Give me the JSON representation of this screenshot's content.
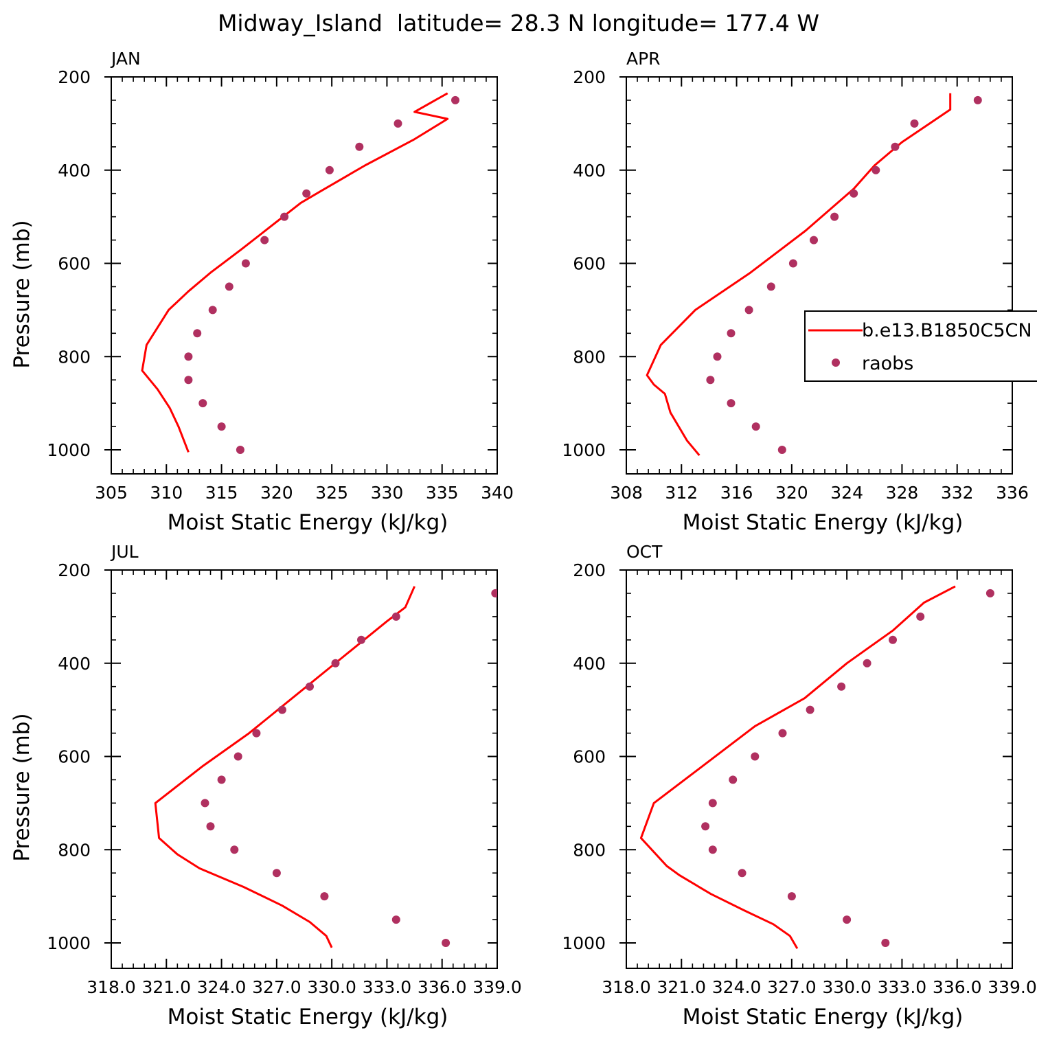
{
  "figure": {
    "title": "Midway_Island  latitude= 28.3 N longitude= 177.4 W"
  },
  "legend": {
    "entries": [
      {
        "label": "b.e13.B1850C5CN",
        "color": "#ff0000",
        "kind": "line"
      },
      {
        "label": "raobs",
        "color": "#b03060",
        "kind": "marker"
      }
    ]
  },
  "colors": {
    "model": "#ff0000",
    "obs": "#b03060"
  },
  "chart_data": [
    {
      "type": "line",
      "panel": "JAN",
      "xlabel": "Moist Static Energy (kJ/kg)",
      "ylabel": "Pressure (mb)",
      "xlim": [
        305,
        340
      ],
      "ylim": [
        1000,
        200
      ],
      "x_ticks": [
        "305",
        "310",
        "315",
        "320",
        "325",
        "330",
        "335",
        "340"
      ],
      "y_ticks": [
        "200",
        "400",
        "600",
        "800",
        "1000"
      ],
      "series": [
        {
          "name": "b.e13.B1850C5CN",
          "points": [
            [
              312.0,
              1005
            ],
            [
              311.1,
              950
            ],
            [
              310.3,
              910
            ],
            [
              309.2,
              870
            ],
            [
              307.8,
              830
            ],
            [
              308.2,
              775
            ],
            [
              310.2,
              700
            ],
            [
              312.0,
              660
            ],
            [
              314.0,
              620
            ],
            [
              316.8,
              570
            ],
            [
              319.5,
              520
            ],
            [
              322.2,
              470
            ],
            [
              324.0,
              445
            ],
            [
              328.0,
              390
            ],
            [
              332.4,
              335
            ],
            [
              335.5,
              290
            ],
            [
              332.5,
              275
            ],
            [
              335.5,
              235
            ]
          ]
        },
        {
          "name": "raobs",
          "points": [
            [
              316.7,
              1000
            ],
            [
              315.0,
              950
            ],
            [
              313.3,
              900
            ],
            [
              312.0,
              850
            ],
            [
              312.0,
              800
            ],
            [
              312.8,
              750
            ],
            [
              314.2,
              700
            ],
            [
              315.7,
              650
            ],
            [
              317.2,
              600
            ],
            [
              318.9,
              550
            ],
            [
              320.7,
              500
            ],
            [
              322.7,
              450
            ],
            [
              324.8,
              400
            ],
            [
              327.5,
              350
            ],
            [
              331.0,
              300
            ],
            [
              336.2,
              250
            ]
          ]
        }
      ]
    },
    {
      "type": "line",
      "panel": "APR",
      "xlabel": "Moist Static Energy (kJ/kg)",
      "ylabel": "",
      "xlim": [
        308,
        336
      ],
      "ylim": [
        1000,
        200
      ],
      "x_ticks": [
        "308",
        "312",
        "316",
        "320",
        "324",
        "328",
        "332",
        "336"
      ],
      "y_ticks": [
        "200",
        "400",
        "600",
        "800",
        "1000"
      ],
      "series": [
        {
          "name": "b.e13.B1850C5CN",
          "points": [
            [
              313.3,
              1012
            ],
            [
              312.4,
              980
            ],
            [
              311.9,
              955
            ],
            [
              311.2,
              920
            ],
            [
              310.8,
              880
            ],
            [
              310.0,
              860
            ],
            [
              309.5,
              840
            ],
            [
              310.5,
              775
            ],
            [
              313.0,
              700
            ],
            [
              317.0,
              620
            ],
            [
              321.0,
              530
            ],
            [
              324.5,
              440
            ],
            [
              326.0,
              390
            ],
            [
              328.0,
              340
            ],
            [
              330.0,
              300
            ],
            [
              331.5,
              270
            ],
            [
              331.5,
              235
            ]
          ]
        },
        {
          "name": "raobs",
          "points": [
            [
              319.3,
              1000
            ],
            [
              317.4,
              950
            ],
            [
              315.6,
              900
            ],
            [
              314.1,
              850
            ],
            [
              314.6,
              800
            ],
            [
              315.6,
              750
            ],
            [
              316.9,
              700
            ],
            [
              318.5,
              650
            ],
            [
              320.1,
              600
            ],
            [
              321.6,
              550
            ],
            [
              323.1,
              500
            ],
            [
              324.5,
              450
            ],
            [
              326.1,
              400
            ],
            [
              327.5,
              350
            ],
            [
              328.9,
              300
            ],
            [
              333.5,
              250
            ]
          ]
        }
      ]
    },
    {
      "type": "line",
      "panel": "JUL",
      "xlabel": "Moist Static Energy (kJ/kg)",
      "ylabel": "Pressure (mb)",
      "xlim": [
        318.0,
        339.0
      ],
      "ylim": [
        1000,
        200
      ],
      "x_ticks": [
        "318.0",
        "321.0",
        "324.0",
        "327.0",
        "330.0",
        "333.0",
        "336.0",
        "339.0"
      ],
      "y_ticks": [
        "200",
        "400",
        "600",
        "800",
        "1000"
      ],
      "series": [
        {
          "name": "b.e13.B1850C5CN",
          "points": [
            [
              330.0,
              1010
            ],
            [
              329.7,
              985
            ],
            [
              328.8,
              955
            ],
            [
              327.3,
              920
            ],
            [
              325.2,
              880
            ],
            [
              322.8,
              840
            ],
            [
              321.6,
              810
            ],
            [
              320.6,
              775
            ],
            [
              320.4,
              700
            ],
            [
              323.0,
              620
            ],
            [
              325.5,
              550
            ],
            [
              328.0,
              470
            ],
            [
              330.5,
              390
            ],
            [
              333.0,
              310
            ],
            [
              334.0,
              280
            ],
            [
              334.5,
              235
            ]
          ]
        },
        {
          "name": "raobs",
          "points": [
            [
              336.2,
              1000
            ],
            [
              333.5,
              950
            ],
            [
              329.6,
              900
            ],
            [
              327.0,
              850
            ],
            [
              324.7,
              800
            ],
            [
              323.4,
              750
            ],
            [
              323.1,
              700
            ],
            [
              324.0,
              650
            ],
            [
              324.9,
              600
            ],
            [
              325.9,
              550
            ],
            [
              327.3,
              500
            ],
            [
              328.8,
              450
            ],
            [
              330.2,
              400
            ],
            [
              331.6,
              350
            ],
            [
              333.5,
              300
            ],
            [
              338.9,
              250
            ]
          ]
        }
      ]
    },
    {
      "type": "line",
      "panel": "OCT",
      "xlabel": "Moist Static Energy (kJ/kg)",
      "ylabel": "",
      "xlim": [
        318.0,
        339.0
      ],
      "ylim": [
        1000,
        200
      ],
      "x_ticks": [
        "318.0",
        "321.0",
        "324.0",
        "327.0",
        "330.0",
        "333.0",
        "336.0",
        "339.0"
      ],
      "y_ticks": [
        "200",
        "400",
        "600",
        "800",
        "1000"
      ],
      "series": [
        {
          "name": "b.e13.B1850C5CN",
          "points": [
            [
              327.3,
              1012
            ],
            [
              326.9,
              985
            ],
            [
              326.0,
              960
            ],
            [
              324.4,
              930
            ],
            [
              322.6,
              895
            ],
            [
              320.9,
              855
            ],
            [
              320.2,
              835
            ],
            [
              318.8,
              775
            ],
            [
              319.5,
              700
            ],
            [
              321.5,
              640
            ],
            [
              325.0,
              535
            ],
            [
              327.7,
              475
            ],
            [
              330.0,
              400
            ],
            [
              332.5,
              330
            ],
            [
              334.2,
              270
            ],
            [
              335.9,
              235
            ]
          ]
        },
        {
          "name": "raobs",
          "points": [
            [
              332.1,
              1000
            ],
            [
              330.0,
              950
            ],
            [
              327.0,
              900
            ],
            [
              324.3,
              850
            ],
            [
              322.7,
              800
            ],
            [
              322.3,
              750
            ],
            [
              322.7,
              700
            ],
            [
              323.8,
              650
            ],
            [
              325.0,
              600
            ],
            [
              326.5,
              550
            ],
            [
              328.0,
              500
            ],
            [
              329.7,
              450
            ],
            [
              331.1,
              400
            ],
            [
              332.5,
              350
            ],
            [
              334.0,
              300
            ],
            [
              337.8,
              250
            ]
          ]
        }
      ]
    }
  ]
}
